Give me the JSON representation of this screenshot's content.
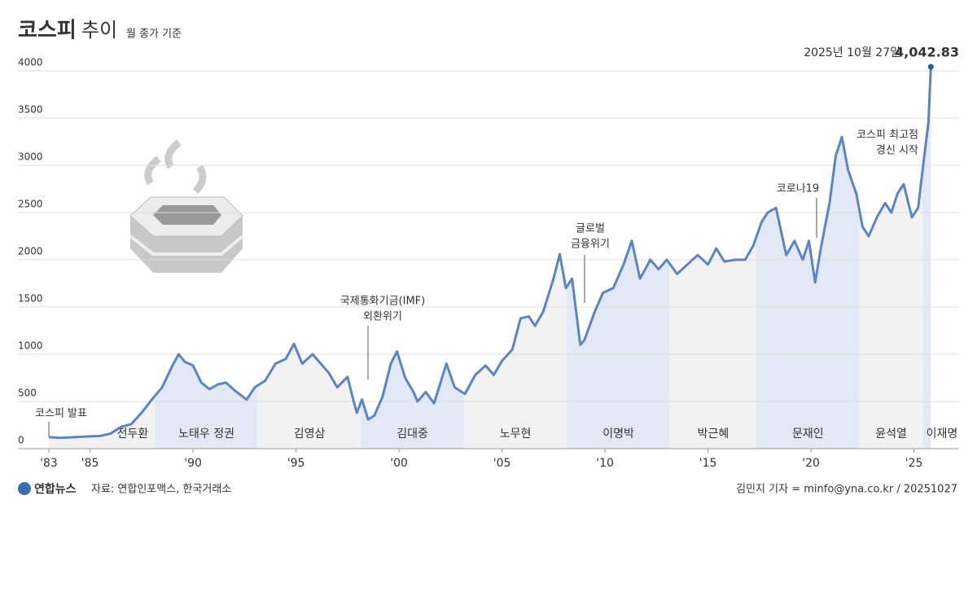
{
  "chart_data": {
    "type": "line",
    "title": "코스피",
    "title_rest": "추이",
    "subtitle": "월 종가 기준",
    "source": "자료: 연합인포맥스, 한국거래소",
    "logo": "연합뉴스",
    "credit": "김민지 기자 = minfo@yna.co.kr / 20251027",
    "last_date": "2025년 10월 27일",
    "last_value_label": "4,042.83",
    "xlim": [
      1983,
      2025.82
    ],
    "ylim": [
      0,
      4000
    ],
    "xticks": [
      {
        "value": 1983,
        "label": "'83"
      },
      {
        "value": 1985,
        "label": "'85"
      },
      {
        "value": 1990,
        "label": "'90"
      },
      {
        "value": 1995,
        "label": "'95"
      },
      {
        "value": 2000,
        "label": "'00"
      },
      {
        "value": 2005,
        "label": "'05"
      },
      {
        "value": 2010,
        "label": "'10"
      },
      {
        "value": 2015,
        "label": "'15"
      },
      {
        "value": 2020,
        "label": "'20"
      },
      {
        "value": 2025,
        "label": "'25"
      }
    ],
    "yticks": [
      0,
      500,
      1000,
      1500,
      2000,
      2500,
      3000,
      3500,
      4000
    ],
    "grid": true,
    "color": "#5b84c4",
    "x": [
      1983.0,
      1983.5,
      1984.0,
      1984.5,
      1985.0,
      1985.5,
      1986.0,
      1986.5,
      1987.0,
      1987.5,
      1988.0,
      1988.5,
      1989.0,
      1989.3,
      1989.6,
      1990.0,
      1990.4,
      1990.8,
      1991.2,
      1991.6,
      1992.0,
      1992.6,
      1993.0,
      1993.5,
      1994.0,
      1994.5,
      1994.9,
      1995.3,
      1995.8,
      1996.2,
      1996.6,
      1997.0,
      1997.5,
      1997.8,
      1997.95,
      1998.2,
      1998.5,
      1998.8,
      1999.2,
      1999.6,
      1999.9,
      2000.3,
      2000.7,
      2000.9,
      2001.3,
      2001.7,
      2002.3,
      2002.7,
      2003.2,
      2003.7,
      2004.2,
      2004.6,
      2005.0,
      2005.5,
      2005.9,
      2006.3,
      2006.6,
      2007.0,
      2007.5,
      2007.8,
      2008.1,
      2008.4,
      2008.8,
      2009.0,
      2009.5,
      2009.9,
      2010.4,
      2010.9,
      2011.3,
      2011.7,
      2012.2,
      2012.6,
      2013.0,
      2013.5,
      2014.0,
      2014.5,
      2015.0,
      2015.4,
      2015.8,
      2016.3,
      2016.8,
      2017.2,
      2017.6,
      2017.9,
      2018.3,
      2018.8,
      2019.2,
      2019.6,
      2019.9,
      2020.2,
      2020.5,
      2020.9,
      2021.2,
      2021.5,
      2021.8,
      2022.2,
      2022.5,
      2022.8,
      2023.2,
      2023.6,
      2023.9,
      2024.2,
      2024.5,
      2024.9,
      2025.2,
      2025.5,
      2025.7,
      2025.82
    ],
    "values": [
      122,
      115,
      120,
      125,
      130,
      135,
      160,
      230,
      260,
      380,
      520,
      650,
      880,
      1000,
      920,
      880,
      700,
      630,
      680,
      700,
      620,
      520,
      650,
      720,
      900,
      950,
      1110,
      900,
      1000,
      900,
      800,
      650,
      760,
      500,
      380,
      520,
      310,
      350,
      550,
      900,
      1030,
      750,
      600,
      500,
      600,
      480,
      900,
      650,
      580,
      780,
      880,
      780,
      930,
      1050,
      1380,
      1400,
      1300,
      1450,
      1800,
      2060,
      1700,
      1800,
      1100,
      1150,
      1450,
      1650,
      1700,
      1950,
      2200,
      1800,
      2000,
      1900,
      2000,
      1850,
      1950,
      2050,
      1950,
      2120,
      1980,
      2000,
      2000,
      2150,
      2400,
      2500,
      2550,
      2050,
      2200,
      2000,
      2200,
      1760,
      2150,
      2600,
      3100,
      3300,
      2950,
      2700,
      2350,
      2250,
      2450,
      2600,
      2500,
      2700,
      2800,
      2450,
      2550,
      3100,
      3450,
      4042.83
    ],
    "eras": [
      {
        "name": "전두환",
        "start": 1983,
        "end": 1988.15,
        "color": "#f2f2f2",
        "text": "#333"
      },
      {
        "name": "노태우 정권",
        "start": 1988.15,
        "end": 1993.15,
        "color": "#e3e9f4",
        "text": "#3b6db3"
      },
      {
        "name": "김영삼",
        "start": 1993.15,
        "end": 1998.15,
        "color": "#f2f2f2",
        "text": "#333"
      },
      {
        "name": "김대중",
        "start": 1998.15,
        "end": 2003.15,
        "color": "#e3e9f4",
        "text": "#3b6db3"
      },
      {
        "name": "노무현",
        "start": 2003.15,
        "end": 2008.15,
        "color": "#f2f2f2",
        "text": "#333"
      },
      {
        "name": "이명박",
        "start": 2008.15,
        "end": 2013.15,
        "color": "#e3e9f4",
        "text": "#3b6db3"
      },
      {
        "name": "박근혜",
        "start": 2013.15,
        "end": 2017.35,
        "color": "#f2f2f2",
        "text": "#333"
      },
      {
        "name": "문재인",
        "start": 2017.35,
        "end": 2022.35,
        "color": "#e3e9f4",
        "text": "#3b6db3"
      },
      {
        "name": "윤석열",
        "start": 2022.35,
        "end": 2025.43,
        "color": "#f2f2f2",
        "text": "#333"
      },
      {
        "name": "이재명",
        "start": 2025.43,
        "end": 2025.82,
        "color": "#e3e9f4",
        "text": "#3b6db3"
      }
    ],
    "annotations": [
      {
        "lines": [
          "코스피 발표"
        ]
      },
      {
        "lines": [
          "국제통화기금(IMF)",
          "외환위기"
        ]
      },
      {
        "lines": [
          "글로벌",
          "금융위기"
        ]
      },
      {
        "lines": [
          "코로나19"
        ]
      },
      {
        "lines": [
          "코스피 최고점",
          "경신 시작"
        ]
      }
    ]
  }
}
